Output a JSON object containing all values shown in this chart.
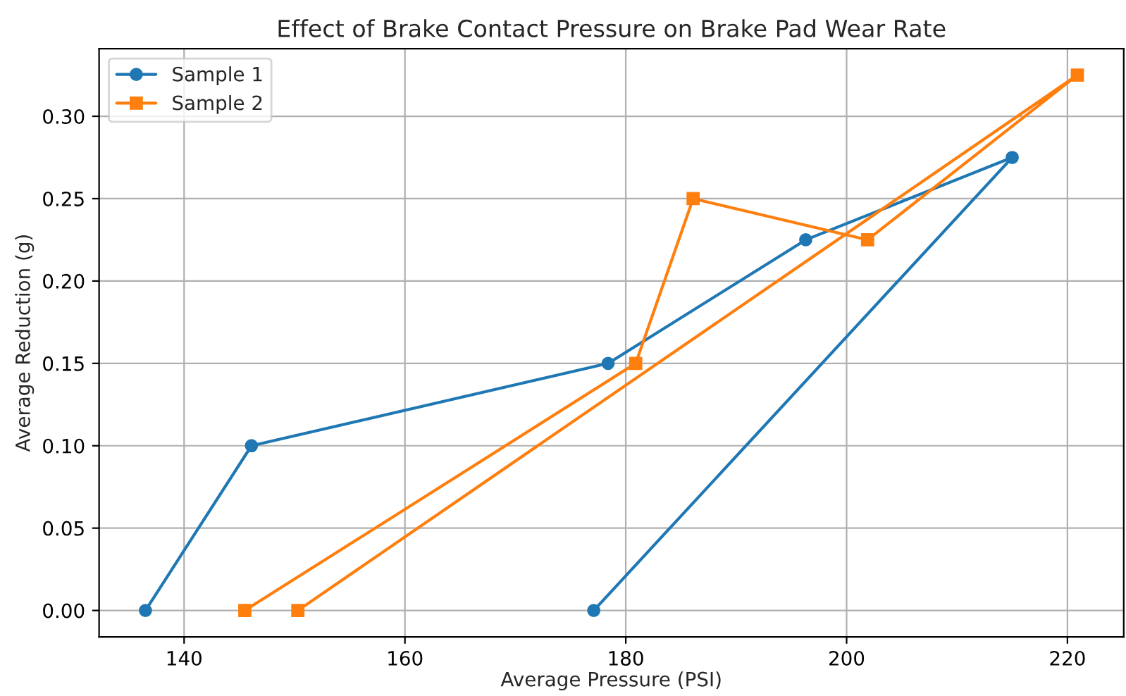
{
  "chart_data": {
    "type": "line",
    "title": "Effect of Brake Contact Pressure on Brake Pad Wear Rate",
    "xlabel": "Average Pressure (PSI)",
    "ylabel": "Average Reduction (g)",
    "series": [
      {
        "name": "Sample 1",
        "color": "#1f77b4",
        "marker": "circle",
        "x": [
          136.5,
          146.1,
          178.4,
          196.3,
          215.0,
          177.1
        ],
        "values": [
          0.0,
          0.1,
          0.15,
          0.225,
          0.275,
          0.0
        ]
      },
      {
        "name": "Sample 2",
        "color": "#ff7f0e",
        "marker": "square",
        "x": [
          145.5,
          180.9,
          186.1,
          201.9,
          220.9,
          150.3
        ],
        "values": [
          0.0,
          0.15,
          0.25,
          0.225,
          0.325,
          0.0
        ]
      }
    ],
    "xlim": [
      132.3,
      225.1
    ],
    "ylim": [
      -0.016,
      0.341
    ],
    "xticks": [
      140,
      160,
      180,
      200,
      220
    ],
    "yticks": [
      {
        "value": 0,
        "label": "0.00"
      },
      {
        "value": 0.05,
        "label": "0.05"
      },
      {
        "value": 0.1,
        "label": "0.10"
      },
      {
        "value": 0.15,
        "label": "0.15"
      },
      {
        "value": 0.2,
        "label": "0.20"
      },
      {
        "value": 0.25,
        "label": "0.25"
      },
      {
        "value": 0.3,
        "label": "0.30"
      }
    ],
    "grid": true,
    "legend": "top left",
    "line_style": "solid"
  }
}
